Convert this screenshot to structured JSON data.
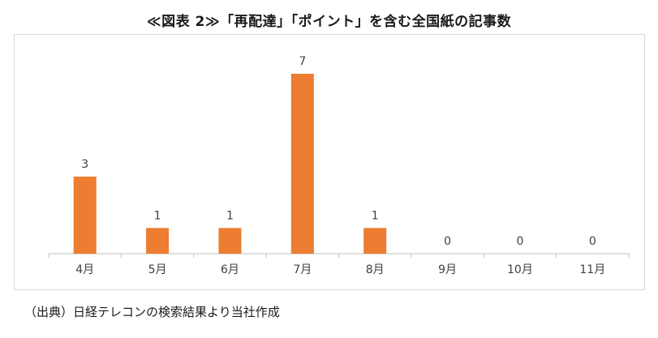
{
  "title": "≪図表 2≫「再配達」「ポイント」を含む全国紙の記事数",
  "source": "（出典）日経テレコンの検索結果より当社作成",
  "colors": {
    "bar": "#ED7D31",
    "axis": "#bfbfbf",
    "text": "#404040"
  },
  "chart_data": {
    "type": "bar",
    "title": "≪図表 2≫「再配達」「ポイント」を含む全国紙の記事数",
    "categories": [
      "4月",
      "5月",
      "6月",
      "7月",
      "8月",
      "9月",
      "10月",
      "11月"
    ],
    "values": [
      3,
      1,
      1,
      7,
      1,
      0,
      0,
      0
    ],
    "xlabel": "",
    "ylabel": "",
    "ylim": [
      0,
      7
    ],
    "grid": false,
    "legend": "none",
    "data_labels": true
  }
}
